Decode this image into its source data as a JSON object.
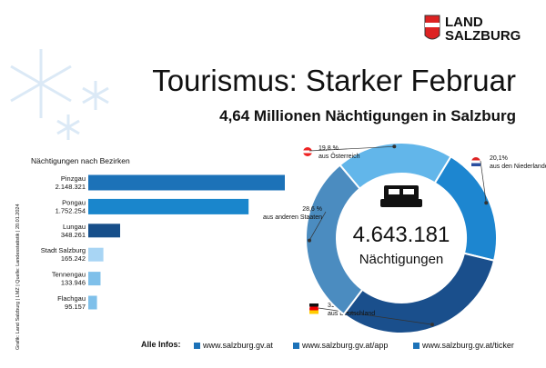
{
  "logo": [
    "LAND",
    "SALZBURG"
  ],
  "title": "Tourismus: Starker Februar",
  "subtitle": "4,64 Millionen Nächtigungen in Salzburg",
  "source": "Grafik: Land Salzburg | LMZ | Quelle: Landesstatistik | 20.01.2024",
  "footer": {
    "label": "Alle Infos:",
    "links": [
      "www.salzburg.gv.at",
      "www.salzburg.gv.at/app",
      "www.salzburg.gv.at/ticker"
    ]
  },
  "chart_data": [
    {
      "type": "bar",
      "title": "Nächtigungen nach Bezirken",
      "categories": [
        "Pinzgau",
        "Pongau",
        "Lungau",
        "Stadt Salzburg",
        "Tennengau",
        "Flachgau"
      ],
      "values": [
        2148321,
        1752254,
        348261,
        165242,
        133946,
        95157
      ],
      "value_labels": [
        "2.148.321",
        "1.752.254",
        "348.261",
        "165.242",
        "133.946",
        "95.157"
      ],
      "colors": [
        "#1c72b8",
        "#1a86cc",
        "#174f8a",
        "#a8d5f4",
        "#7fc0ea",
        "#7fc0ea"
      ]
    },
    {
      "type": "pie",
      "categories": [
        "aus Österreich",
        "aus den Niederlanden",
        "aus Deutschland",
        "aus anderen Staaten"
      ],
      "values": [
        19.8,
        20.1,
        31.5,
        28.6
      ],
      "value_labels": [
        "19,8 %",
        "20,1%",
        "31,5 %",
        "28,6 %"
      ],
      "colors": [
        "#62b6ea",
        "#1d86d0",
        "#1a4f8c",
        "#4b8cc0"
      ],
      "center_label": "4.643.181",
      "center_caption": "Nächtigungen"
    }
  ]
}
